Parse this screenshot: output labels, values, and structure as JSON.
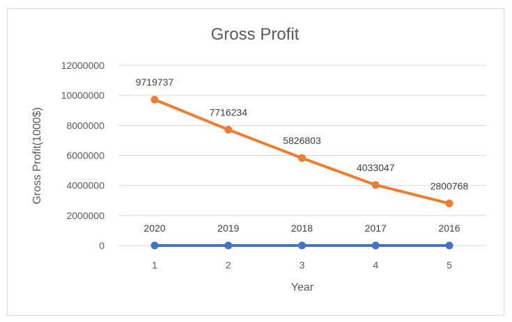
{
  "chart_data": {
    "type": "line",
    "title": "Gross Profit",
    "xlabel": "Year",
    "ylabel": "Gross Profit(1000$)",
    "x": [
      1,
      2,
      3,
      4,
      5
    ],
    "ylim": [
      0,
      12000000
    ],
    "yticks": [
      0,
      2000000,
      4000000,
      6000000,
      8000000,
      10000000,
      12000000
    ],
    "grid": true,
    "series": [
      {
        "color": "#4472c4",
        "values": [
          0,
          0,
          0,
          0,
          0
        ],
        "data_labels": [
          "2020",
          "2019",
          "2018",
          "2017",
          "2016"
        ]
      },
      {
        "color": "#ed7d31",
        "values": [
          9719737,
          7716234,
          5826803,
          4033047,
          2800768
        ],
        "data_labels": [
          "9719737",
          "7716234",
          "5826803",
          "4033047",
          "2800768"
        ]
      }
    ]
  }
}
